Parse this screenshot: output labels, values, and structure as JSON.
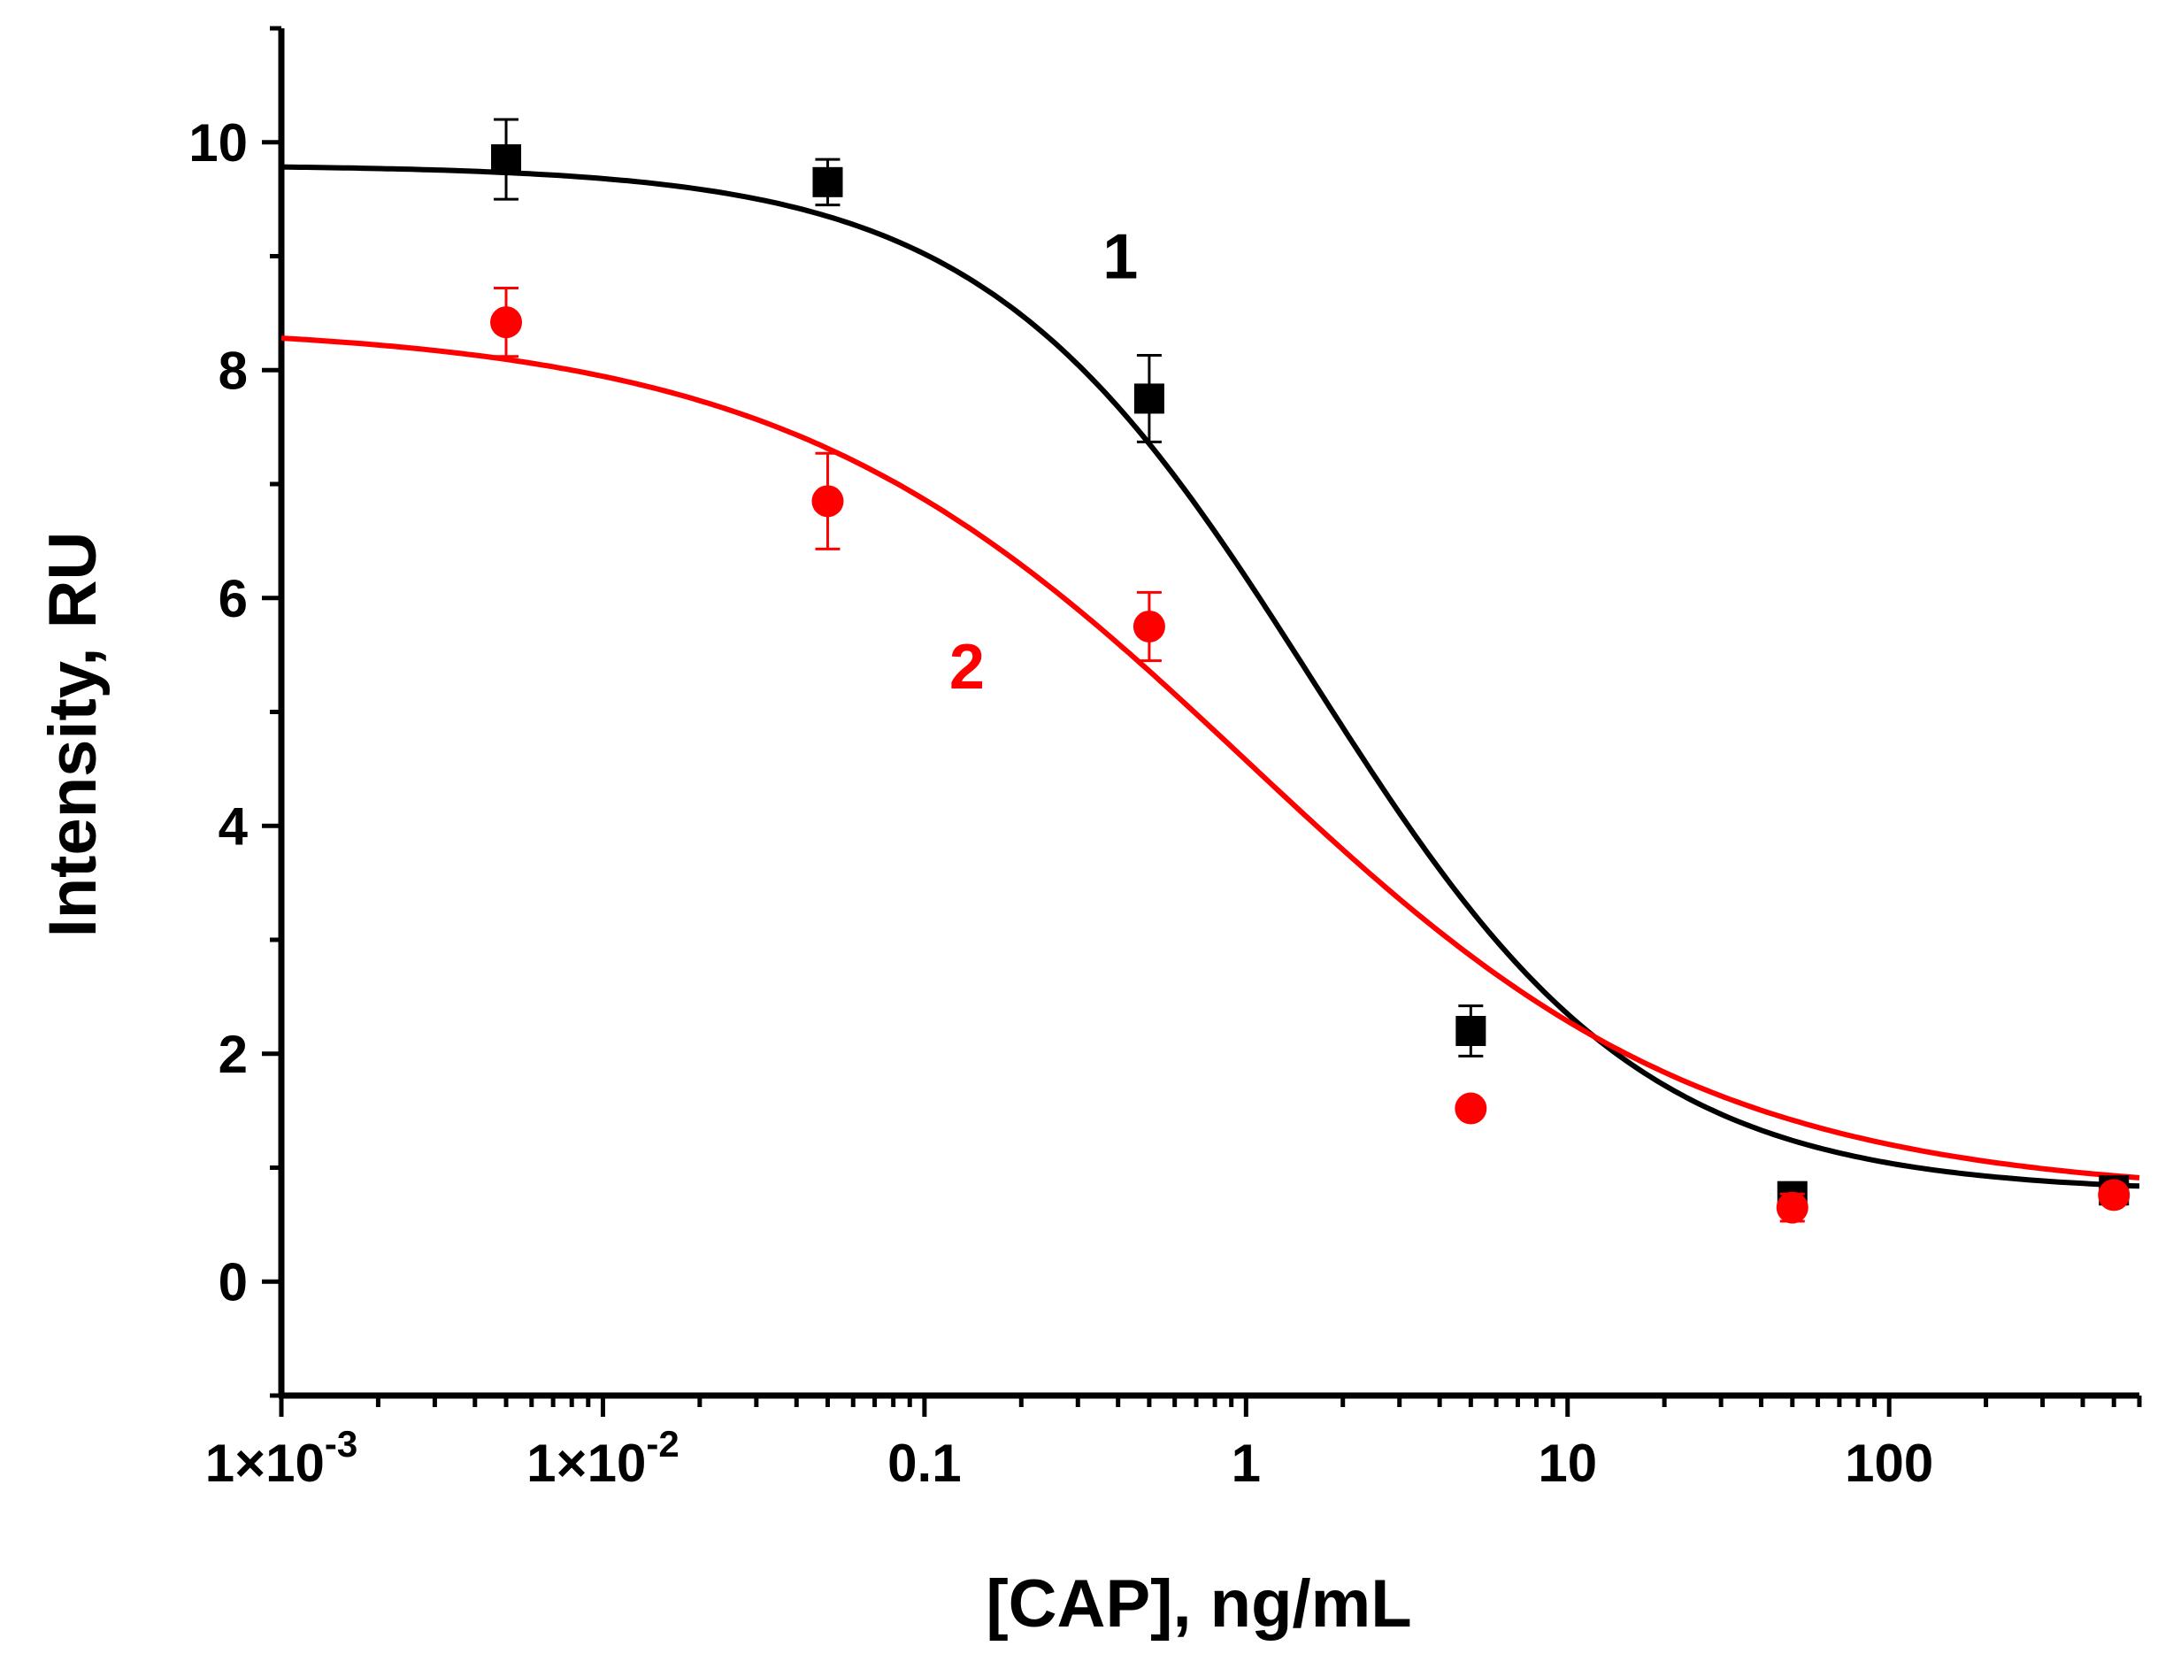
{
  "chart_data": {
    "type": "scatter",
    "title": "",
    "xlabel": "[CAP], ng/mL",
    "ylabel": "Intensity, RU",
    "xscale": "log",
    "xlim": [
      0.001,
      600
    ],
    "ylim": [
      -1,
      11
    ],
    "y_ticks": [
      "0",
      "2",
      "4",
      "6",
      "8",
      "10"
    ],
    "x_ticks": [
      {
        "value": 0.001,
        "label": "1×10",
        "exp": "-3"
      },
      {
        "value": 0.01,
        "label": "1×10",
        "exp": "-2"
      },
      {
        "value": 0.1,
        "label": "0.1",
        "exp": ""
      },
      {
        "value": 1,
        "label": "1",
        "exp": ""
      },
      {
        "value": 10,
        "label": "10",
        "exp": ""
      },
      {
        "value": 100,
        "label": "100",
        "exp": ""
      }
    ],
    "series": [
      {
        "name": "1",
        "color": "#000000",
        "marker": "square",
        "x": [
          0.005,
          0.05,
          0.5,
          5,
          50,
          500
        ],
        "y": [
          9.85,
          9.65,
          7.75,
          2.2,
          0.75,
          0.8
        ],
        "err": [
          0.35,
          0.2,
          0.38,
          0.22,
          0.1,
          0.06
        ],
        "fit": {
          "top": 9.8,
          "bottom": 0.78,
          "ec50": 1.6,
          "hill": 0.85
        }
      },
      {
        "name": "2",
        "color": "#ff0000",
        "marker": "circle",
        "x": [
          0.005,
          0.05,
          0.5,
          5,
          50,
          500
        ],
        "y": [
          8.42,
          6.85,
          5.75,
          1.52,
          0.65,
          0.76
        ],
        "err": [
          0.3,
          0.42,
          0.3,
          0.05,
          0.12,
          0.05
        ],
        "fit": {
          "top": 8.4,
          "bottom": 0.75,
          "ec50": 1.0,
          "hill": 0.6
        }
      }
    ],
    "annotations": [
      {
        "text": "1",
        "color": "#000000",
        "x": 0.3,
        "y": 9.0
      },
      {
        "text": "2",
        "color": "#ff0000",
        "x": 0.1,
        "y": 5.4
      }
    ],
    "legend": "none",
    "grid": false
  }
}
